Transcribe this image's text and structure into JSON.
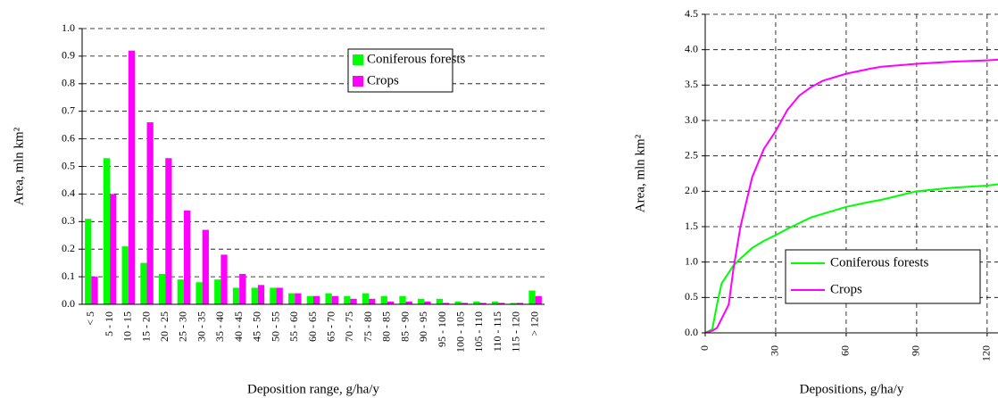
{
  "chart_data": [
    {
      "type": "bar",
      "xlabel": "Deposition range, g/ha/y",
      "ylabel": "Area, mln km²",
      "categories": [
        "< 5",
        "5 - 10",
        "10 - 15",
        "15 - 20",
        "20 - 25",
        "25 - 30",
        "30 - 35",
        "35 - 40",
        "40 - 45",
        "45 - 50",
        "50 - 55",
        "55 - 60",
        "60 - 65",
        "65 - 70",
        "70 - 75",
        "75 - 80",
        "80 - 85",
        "85 - 90",
        "90 - 95",
        "95 - 100",
        "100 - 105",
        "105 - 110",
        "110 - 115",
        "115 - 120",
        "> 120"
      ],
      "series": [
        {
          "name": "Coniferous forests",
          "color": "#00ff00",
          "values": [
            0.31,
            0.53,
            0.21,
            0.15,
            0.11,
            0.09,
            0.08,
            0.09,
            0.06,
            0.06,
            0.06,
            0.04,
            0.03,
            0.04,
            0.03,
            0.04,
            0.03,
            0.03,
            0.02,
            0.02,
            0.01,
            0.01,
            0.01,
            0.005,
            0.05
          ]
        },
        {
          "name": "Crops",
          "color": "#ff00ff",
          "values": [
            0.1,
            0.4,
            0.92,
            0.66,
            0.53,
            0.34,
            0.27,
            0.18,
            0.11,
            0.07,
            0.06,
            0.04,
            0.03,
            0.03,
            0.02,
            0.02,
            0.01,
            0.01,
            0.01,
            0.005,
            0.005,
            0.005,
            0.005,
            0.005,
            0.03
          ]
        }
      ],
      "ylim": [
        0,
        1
      ],
      "yticks": [
        {
          "value": 0,
          "label": "0.0"
        },
        0.1,
        0.2,
        0.3,
        0.4,
        0.5,
        0.6,
        0.7,
        0.8,
        0.9,
        {
          "value": 1,
          "label": "1.0"
        }
      ],
      "grid": true,
      "legend": "upper right"
    },
    {
      "type": "line",
      "xlabel": "Depositions, g/ha/y",
      "ylabel": "Area, mln km²",
      "x": [
        0,
        3,
        5,
        7,
        10,
        12,
        15,
        20,
        25,
        30,
        35,
        40,
        45,
        50,
        60,
        70,
        75,
        90,
        105,
        120,
        125
      ],
      "series": [
        {
          "name": "Coniferous forests",
          "color": "#00ff00",
          "values": [
            0,
            0.05,
            0.4,
            0.7,
            0.85,
            0.95,
            1.05,
            1.2,
            1.3,
            1.38,
            1.47,
            1.55,
            1.63,
            1.68,
            1.78,
            1.85,
            1.88,
            2.0,
            2.05,
            2.08,
            2.1
          ]
        },
        {
          "name": "Crops",
          "color": "#ff00ff",
          "values": [
            0,
            0.03,
            0.07,
            0.2,
            0.4,
            0.9,
            1.5,
            2.2,
            2.6,
            2.85,
            3.15,
            3.35,
            3.47,
            3.56,
            3.66,
            3.73,
            3.76,
            3.8,
            3.83,
            3.85,
            3.86
          ]
        }
      ],
      "xlim": [
        0,
        125
      ],
      "xticks": [
        0,
        30,
        60,
        90,
        120
      ],
      "ylim": [
        0,
        4.5
      ],
      "yticks": [
        {
          "value": 0,
          "label": "0.0"
        },
        0.5,
        {
          "value": 1,
          "label": "1.0"
        },
        1.5,
        {
          "value": 2,
          "label": "2.0"
        },
        2.5,
        {
          "value": 3,
          "label": "3.0"
        },
        3.5,
        {
          "value": 4,
          "label": "4.0"
        },
        4.5
      ],
      "grid": true,
      "legend": "lower right"
    }
  ]
}
